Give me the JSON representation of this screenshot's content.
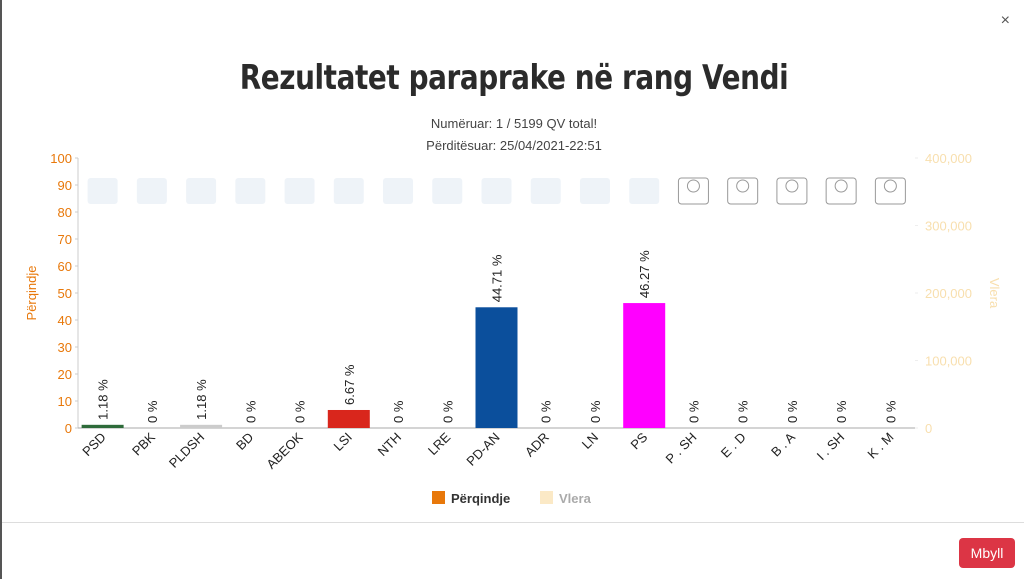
{
  "modal": {
    "close": "×",
    "button": "Mbyll"
  },
  "chart_data": {
    "type": "bar",
    "title": "Rezultatet paraprake në rang Vendi",
    "subtitle": [
      "Numëruar: 1 / 5199 QV total!",
      "Përditësuar: 25/04/2021-22:51"
    ],
    "categories": [
      "PSD",
      "PBK",
      "PLDSH",
      "BD",
      "ABEOK",
      "LSI",
      "NTH",
      "LRE",
      "PD-AN",
      "ADR",
      "LN",
      "PS",
      "P . SH",
      "E . D",
      "B . A",
      "I . SH",
      "K . M"
    ],
    "series": [
      {
        "name": "Përqindje",
        "color": "#e8780a",
        "values": [
          1.18,
          0,
          1.18,
          0,
          0,
          6.67,
          0,
          0,
          44.71,
          0,
          0,
          46.27,
          0,
          0,
          0,
          0,
          0
        ],
        "value_labels": [
          "1.18 %",
          "0 %",
          "1.18 %",
          "0 %",
          "0 %",
          "6.67 %",
          "0 %",
          "0 %",
          "44.71 %",
          "0 %",
          "0 %",
          "46.27 %",
          "0 %",
          "0 %",
          "0 %",
          "0 %",
          "0 %"
        ],
        "bar_colors": [
          "#2e6b3a",
          "#999999",
          "#cccccc",
          "#999999",
          "#999999",
          "#d9261c",
          "#999999",
          "#999999",
          "#0b4f9c",
          "#999999",
          "#999999",
          "#ff00ff",
          "#999999",
          "#999999",
          "#999999",
          "#999999",
          "#999999"
        ]
      },
      {
        "name": "Vlera",
        "color": "#fbe9c6",
        "axis": "y2"
      }
    ],
    "ylabel": "Përqindje",
    "y2label": "Vlera",
    "ylim": [
      0,
      100
    ],
    "yticks": [
      0,
      10,
      20,
      30,
      40,
      50,
      60,
      70,
      80,
      90,
      100
    ],
    "y2lim": [
      0,
      400000
    ],
    "y2ticks": [
      0,
      {
        "value": 100000,
        "label": "100,000"
      },
      {
        "value": 200000,
        "label": "200,000"
      },
      {
        "value": 300000,
        "label": "300,000"
      },
      {
        "value": 400000,
        "label": "400,000"
      }
    ],
    "ycolor": "#e8780a",
    "y2color": "#f8dfae",
    "grid": false
  }
}
